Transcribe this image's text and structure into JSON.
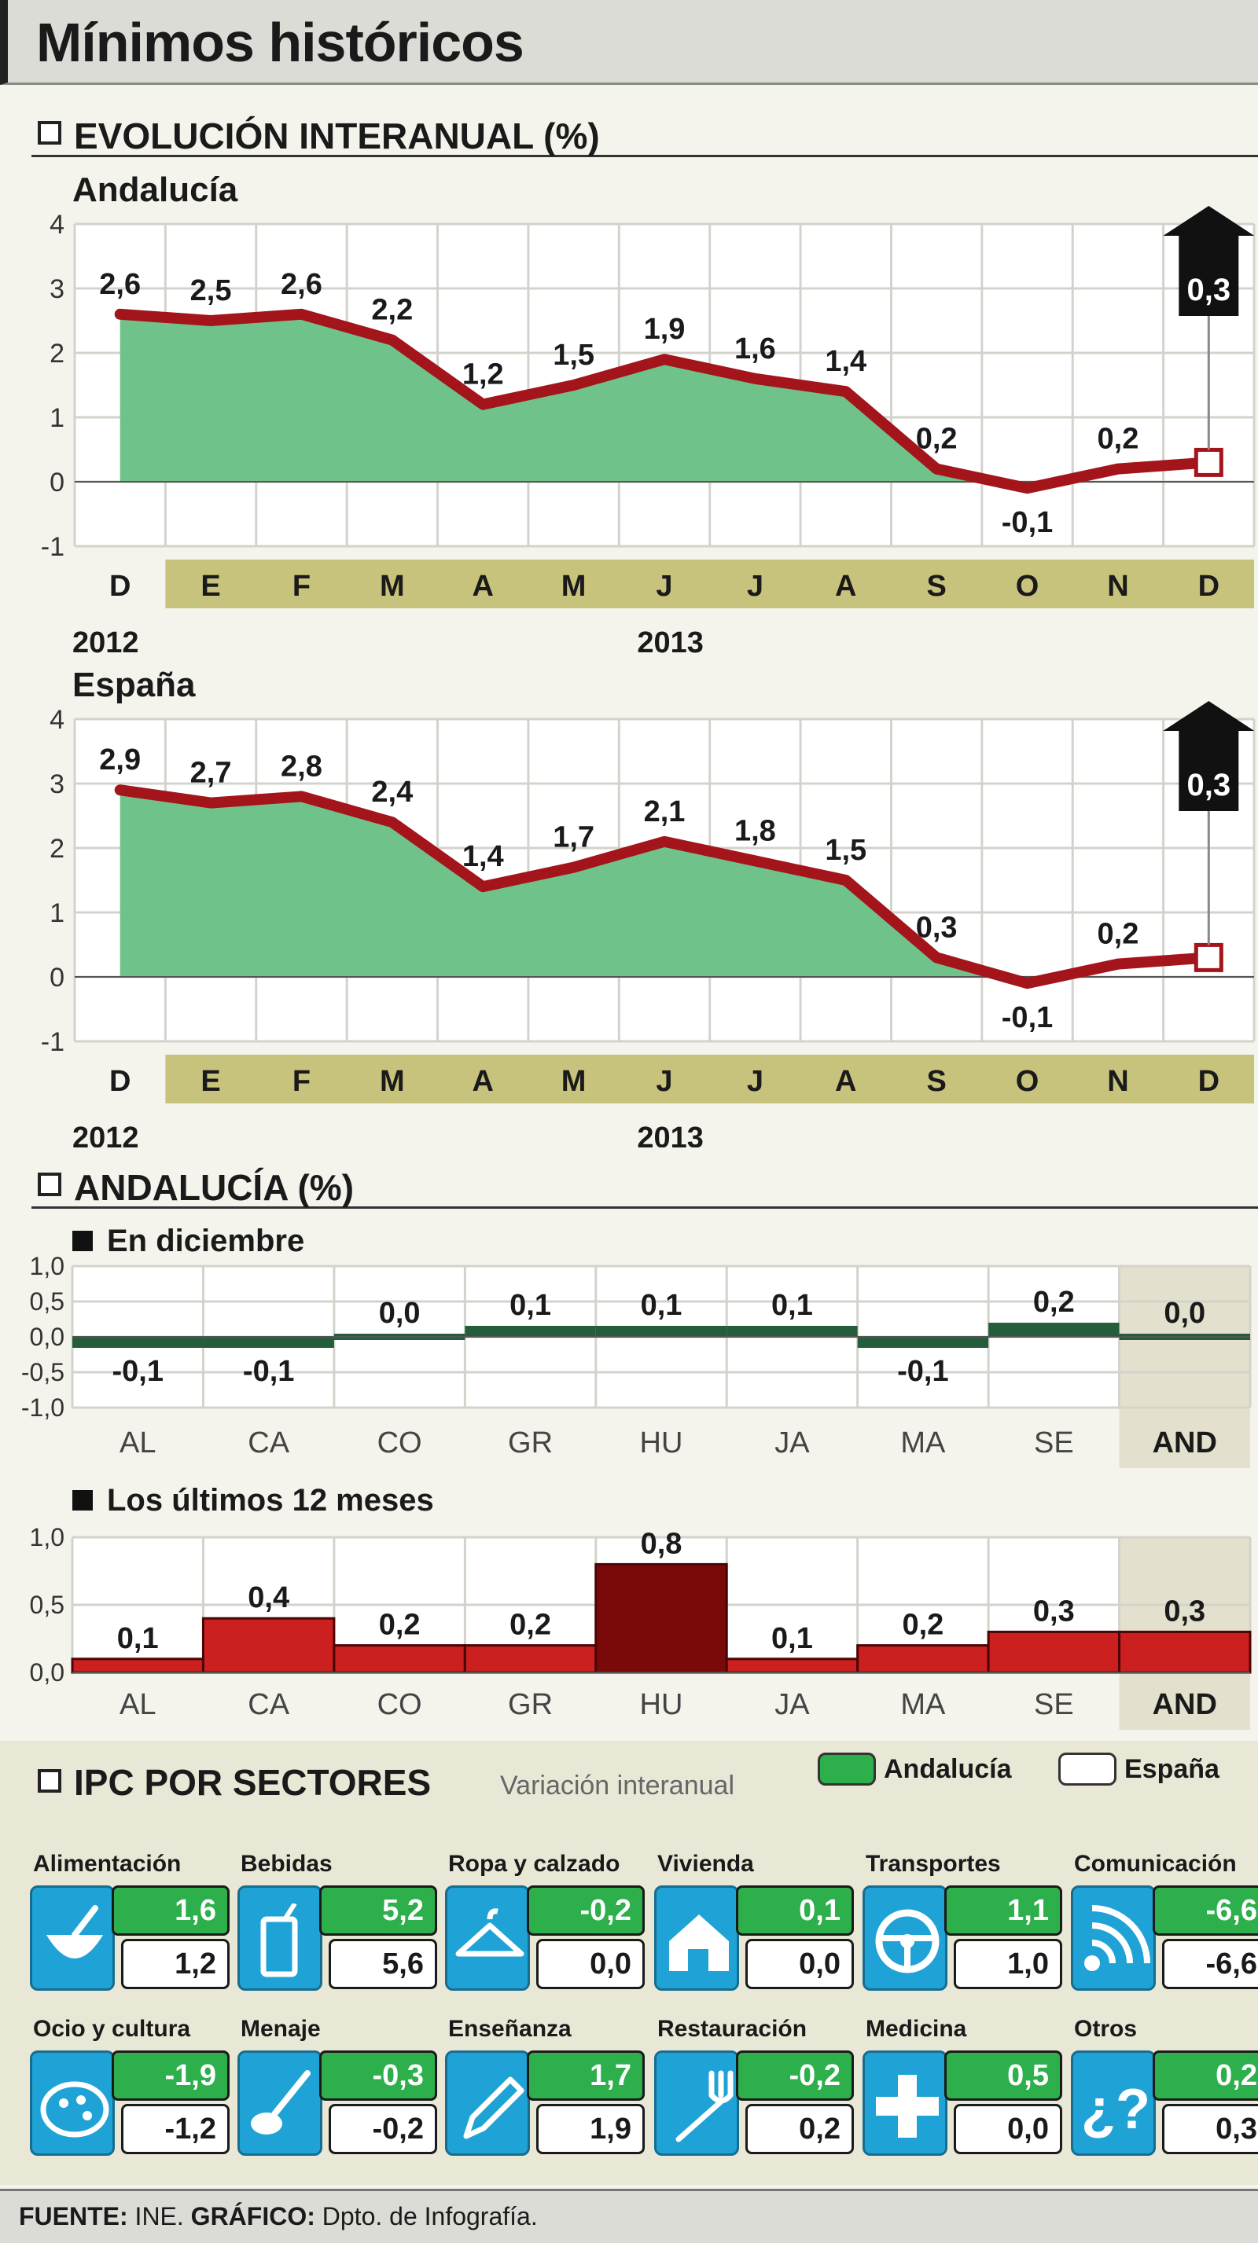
{
  "title": "Mínimos históricos",
  "section1": "EVOLUCIÓN INTERANUAL (%)",
  "section2": "ANDALUCÍA (%)",
  "colors": {
    "fill_green": "#6fc38a",
    "line_red": "#a3151b",
    "bar_red": "#cc1f1f",
    "bar_darkred": "#7a0a0a",
    "month_band": "#c7c27c",
    "tile_blue": "#1fa3d6",
    "tile_green": "#2db04b"
  },
  "chart_data": [
    {
      "type": "area",
      "title": "Andalucía",
      "x": [
        "D",
        "E",
        "F",
        "M",
        "A",
        "M",
        "J",
        "J",
        "A",
        "S",
        "O",
        "N",
        "D"
      ],
      "years": [
        "2012",
        "2013"
      ],
      "values": [
        2.6,
        2.5,
        2.6,
        2.2,
        1.2,
        1.5,
        1.9,
        1.6,
        1.4,
        0.2,
        -0.1,
        0.2,
        0.3
      ],
      "labels": [
        "2,6",
        "2,5",
        "2,6",
        "2,2",
        "1,2",
        "1,5",
        "1,9",
        "1,6",
        "1,4",
        "0,2",
        "-0,1",
        "0,2",
        "0,3"
      ],
      "yticks": [
        "4",
        "3",
        "2",
        "1",
        "0",
        "-1"
      ],
      "ylim": [
        -1,
        4
      ]
    },
    {
      "type": "area",
      "title": "España",
      "x": [
        "D",
        "E",
        "F",
        "M",
        "A",
        "M",
        "J",
        "J",
        "A",
        "S",
        "O",
        "N",
        "D"
      ],
      "years": [
        "2012",
        "2013"
      ],
      "values": [
        2.9,
        2.7,
        2.8,
        2.4,
        1.4,
        1.7,
        2.1,
        1.8,
        1.5,
        0.3,
        -0.1,
        0.2,
        0.3
      ],
      "labels": [
        "2,9",
        "2,7",
        "2,8",
        "2,4",
        "1,4",
        "1,7",
        "2,1",
        "1,8",
        "1,5",
        "0,3",
        "-0,1",
        "0,2",
        "0,3"
      ],
      "yticks": [
        "4",
        "3",
        "2",
        "1",
        "0",
        "-1"
      ],
      "ylim": [
        -1,
        4
      ]
    },
    {
      "type": "bar",
      "title": "En diciembre",
      "categories": [
        "AL",
        "CA",
        "CO",
        "GR",
        "HU",
        "JA",
        "MA",
        "SE",
        "AND"
      ],
      "values": [
        -0.1,
        -0.1,
        0.0,
        0.1,
        0.1,
        0.1,
        -0.1,
        0.2,
        0.0
      ],
      "labels": [
        "-0,1",
        "-0,1",
        "0,0",
        "0,1",
        "0,1",
        "0,1",
        "-0,1",
        "0,2",
        "0,0"
      ],
      "yticks": [
        "1,0",
        "0,5",
        "0,0",
        "-0,5",
        "-1,0"
      ],
      "ylim": [
        -1,
        1
      ]
    },
    {
      "type": "bar",
      "title": "Los últimos 12 meses",
      "categories": [
        "AL",
        "CA",
        "CO",
        "GR",
        "HU",
        "JA",
        "MA",
        "SE",
        "AND"
      ],
      "values": [
        0.1,
        0.4,
        0.2,
        0.2,
        0.8,
        0.1,
        0.2,
        0.3,
        0.3
      ],
      "labels": [
        "0,1",
        "0,4",
        "0,2",
        "0,2",
        "0,8",
        "0,1",
        "0,2",
        "0,3",
        "0,3"
      ],
      "yticks": [
        "1,0",
        "0,5",
        "0,0"
      ],
      "ylim": [
        0,
        1
      ]
    }
  ],
  "sectors": {
    "title": "IPC POR SECTORES",
    "subtitle": "Variación interanual",
    "legend_andalucia": "Andalucía",
    "legend_espana": "España",
    "items": [
      {
        "name": "Alimentación",
        "icon": "bowl-icon",
        "andalucia": "1,6",
        "espana": "1,2"
      },
      {
        "name": "Bebidas",
        "icon": "drink-icon",
        "andalucia": "5,2",
        "espana": "5,6"
      },
      {
        "name": "Ropa y calzado",
        "icon": "hanger-icon",
        "andalucia": "-0,2",
        "espana": "0,0"
      },
      {
        "name": "Vivienda",
        "icon": "house-icon",
        "andalucia": "0,1",
        "espana": "0,0"
      },
      {
        "name": "Transportes",
        "icon": "steering-wheel-icon",
        "andalucia": "1,1",
        "espana": "1,0"
      },
      {
        "name": "Comunicación",
        "icon": "signal-icon",
        "andalucia": "-6,6",
        "espana": "-6,6"
      },
      {
        "name": "Ocio y cultura",
        "icon": "palette-icon",
        "andalucia": "-1,9",
        "espana": "-1,2"
      },
      {
        "name": "Menaje",
        "icon": "ladle-icon",
        "andalucia": "-0,3",
        "espana": "-0,2"
      },
      {
        "name": "Enseñanza",
        "icon": "pencil-icon",
        "andalucia": "1,7",
        "espana": "1,9"
      },
      {
        "name": "Restauración",
        "icon": "fork-icon",
        "andalucia": "-0,2",
        "espana": "0,2"
      },
      {
        "name": "Medicina",
        "icon": "cross-icon",
        "andalucia": "0,5",
        "espana": "0,0"
      },
      {
        "name": "Otros",
        "icon": "question-icon",
        "andalucia": "0,2",
        "espana": "0,3"
      }
    ]
  },
  "footer": {
    "source_label": "FUENTE:",
    "source": "INE.",
    "graphic_label": "GRÁFICO:",
    "graphic": "Dpto. de Infografía."
  }
}
